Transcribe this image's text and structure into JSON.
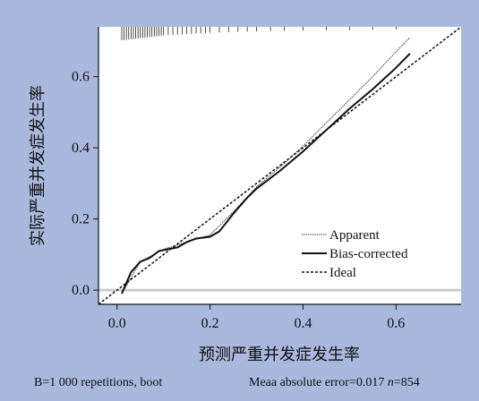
{
  "chart_data": {
    "type": "line",
    "xlabel": "预测严重并发症发生率",
    "ylabel": "实际严重并发症发生率",
    "xlim": [
      -0.04,
      0.74
    ],
    "ylim": [
      -0.04,
      0.74
    ],
    "x_ticks": [
      "0.0",
      "0.2",
      "0.4",
      "0.6"
    ],
    "y_ticks": [
      "0.0",
      "0.2",
      "0.4",
      "0.6"
    ],
    "grid": false,
    "legend_position": "bottom-right",
    "series": [
      {
        "name": "Apparent",
        "style": "dotted",
        "x": [
          0.01,
          0.05,
          0.1,
          0.15,
          0.2,
          0.25,
          0.3,
          0.35,
          0.4,
          0.45,
          0.5,
          0.55,
          0.6,
          0.63
        ],
        "y": [
          -0.01,
          0.08,
          0.115,
          0.135,
          0.155,
          0.22,
          0.29,
          0.345,
          0.405,
          0.47,
          0.535,
          0.6,
          0.67,
          0.71
        ]
      },
      {
        "name": "Bias-corrected",
        "style": "solid",
        "x": [
          0.01,
          0.03,
          0.05,
          0.07,
          0.09,
          0.11,
          0.13,
          0.15,
          0.17,
          0.2,
          0.22,
          0.25,
          0.28,
          0.3,
          0.35,
          0.4,
          0.45,
          0.5,
          0.55,
          0.6,
          0.63
        ],
        "y": [
          -0.01,
          0.05,
          0.08,
          0.09,
          0.11,
          0.115,
          0.12,
          0.135,
          0.145,
          0.15,
          0.165,
          0.215,
          0.26,
          0.285,
          0.335,
          0.39,
          0.45,
          0.51,
          0.565,
          0.625,
          0.665
        ]
      },
      {
        "name": "Ideal",
        "style": "dashed",
        "x": [
          -0.04,
          0.74
        ],
        "y": [
          -0.04,
          0.74
        ]
      }
    ],
    "rug_x": [
      0.01,
      0.015,
      0.02,
      0.025,
      0.03,
      0.035,
      0.04,
      0.045,
      0.05,
      0.055,
      0.06,
      0.065,
      0.07,
      0.075,
      0.08,
      0.085,
      0.09,
      0.095,
      0.1,
      0.11,
      0.12,
      0.13,
      0.14,
      0.15,
      0.16,
      0.17,
      0.18,
      0.19,
      0.2,
      0.22,
      0.24,
      0.26,
      0.28,
      0.3,
      0.33,
      0.36,
      0.4,
      0.45,
      0.5,
      0.55,
      0.6
    ]
  },
  "colors": {
    "background": "#a9b8dd",
    "plot_area": "#ffffff",
    "line": "#111111",
    "reference": "#cccccc"
  },
  "footnote": {
    "left": "B=1 000 repetitions, boot",
    "right_prefix": "Meaa absolute error=0.017 ",
    "n_label": "n",
    "n_value": "=854"
  }
}
